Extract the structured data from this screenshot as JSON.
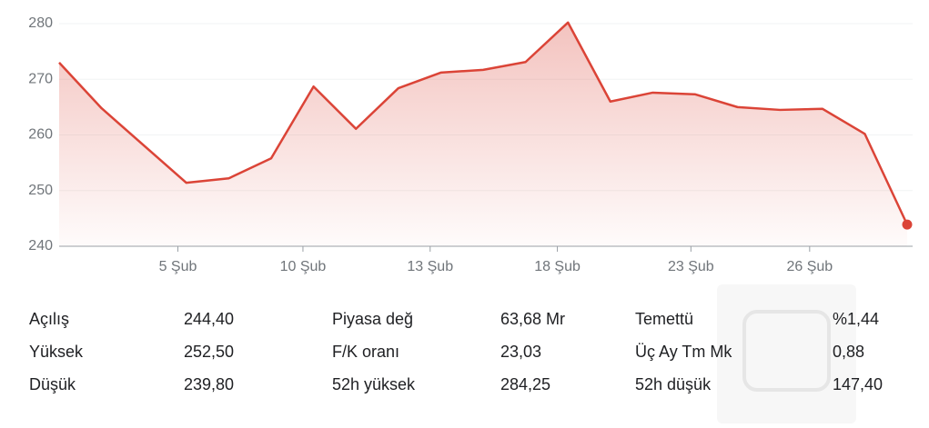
{
  "chart_data": {
    "type": "line",
    "color": "#db4437",
    "grid": true,
    "x": [
      0,
      1,
      3,
      4,
      5,
      6,
      7,
      8,
      9,
      10,
      11,
      12,
      13,
      14,
      15,
      16,
      17,
      18,
      19,
      20
    ],
    "values": [
      273.0,
      264.8,
      251.4,
      252.2,
      255.8,
      268.7,
      261.1,
      268.4,
      271.2,
      271.7,
      273.1,
      280.2,
      266.0,
      267.6,
      267.3,
      265.0,
      264.5,
      264.7,
      260.2,
      243.9
    ],
    "xlim": [
      0,
      20
    ],
    "xticks": [
      {
        "value": 2.8,
        "label": "5 Şub"
      },
      {
        "value": 5.75,
        "label": "10 Şub"
      },
      {
        "value": 8.75,
        "label": "13 Şub"
      },
      {
        "value": 11.75,
        "label": "18 Şub"
      },
      {
        "value": 14.9,
        "label": "23 Şub"
      },
      {
        "value": 17.7,
        "label": "26 Şub"
      }
    ],
    "ylim": [
      240,
      280
    ],
    "yticks": [
      240,
      250,
      260,
      270,
      280
    ]
  },
  "stats": {
    "rows": [
      [
        "Açılış",
        "244,40",
        "Piyasa değ",
        "63,68 Mr",
        "Temettü",
        "%1,44"
      ],
      [
        "Yüksek",
        "252,50",
        "F/K oranı",
        "23,03",
        "Üç Ay Tm Mk",
        "0,88"
      ],
      [
        "Düşük",
        "239,80",
        "52h yüksek",
        "284,25",
        "52h düşük",
        "147,40"
      ]
    ]
  }
}
